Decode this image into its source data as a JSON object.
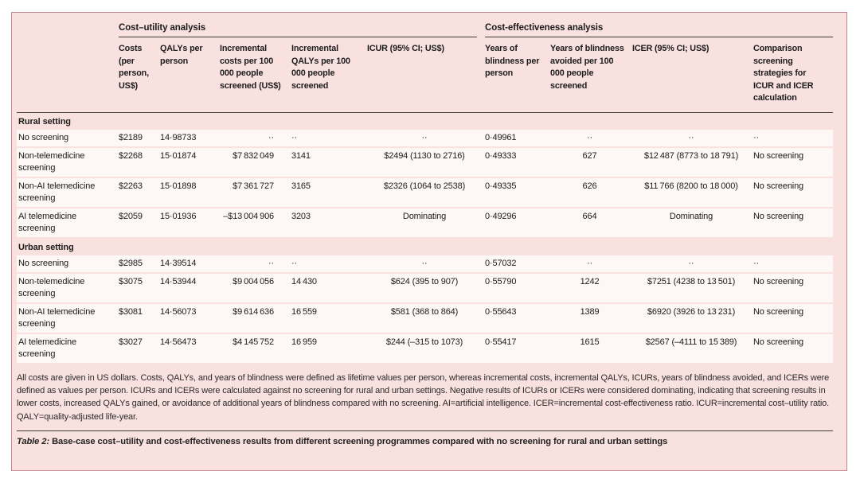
{
  "colors": {
    "pink_bg": "#f8e1de",
    "border_rose": "#c5868f",
    "row_white": "#fdf7f6",
    "rule_dark": "#3a3a3a",
    "text_dark": "#1c1c1c"
  },
  "table": {
    "spanners": [
      "Cost–utility analysis",
      "Cost-effectiveness analysis"
    ],
    "columns": [
      "",
      "Costs (per person, US$)",
      "QALYs per person",
      "Incremental costs per 100 000 people screened (US$)",
      "Incremental QALYs per 100 000 people screened",
      "ICUR (95% CI; US$)",
      "Years of blindness per person",
      "Years of blindness avoided per 100 000 people screened",
      "ICER (95% CI; US$)",
      "Comparison screening strategies for ICUR and ICER calculation"
    ],
    "sections": [
      {
        "title": "Rural setting",
        "rows": [
          [
            "No screening",
            "$2189",
            "14·98733",
            "··",
            "··",
            "··",
            "0·49961",
            "··",
            "··",
            "··"
          ],
          [
            "Non-telemedicine screening",
            "$2268",
            "15·01874",
            "$7 832 049",
            "3141",
            "$2494 (1130 to 2716)",
            "0·49333",
            "627",
            "$12 487 (8773 to 18 791)",
            "No screening"
          ],
          [
            "Non-AI telemedicine screening",
            "$2263",
            "15·01898",
            "$7 361 727",
            "3165",
            "$2326 (1064 to 2538)",
            "0·49335",
            "626",
            "$11 766 (8200 to 18 000)",
            "No screening"
          ],
          [
            "AI telemedicine screening",
            "$2059",
            "15·01936",
            "–$13 004 906",
            "3203",
            "Dominating",
            "0·49296",
            "664",
            "Dominating",
            "No screening"
          ]
        ]
      },
      {
        "title": "Urban setting",
        "rows": [
          [
            "No screening",
            "$2985",
            "14·39514",
            "··",
            "··",
            "··",
            "0·57032",
            "··",
            "··",
            "··"
          ],
          [
            "Non-telemedicine screening",
            "$3075",
            "14·53944",
            "$9 004 056",
            "14 430",
            "$624 (395 to 907)",
            "0·55790",
            "1242",
            "$7251 (4238 to 13 501)",
            "No screening"
          ],
          [
            "Non-AI telemedicine screening",
            "$3081",
            "14·56073",
            "$9 614 636",
            "16 559",
            "$581 (368 to 864)",
            "0·55643",
            "1389",
            "$6920 (3926 to 13 231)",
            "No screening"
          ],
          [
            "AI telemedicine screening",
            "$3027",
            "14·56473",
            "$4 145 752",
            "16 959",
            "$244 (–315 to 1073)",
            "0·55417",
            "1615",
            "$2567 (–4111 to 15 389)",
            "No screening"
          ]
        ]
      }
    ],
    "footnote": "All costs are given in US dollars. Costs, QALYs, and years of blindness were defined as lifetime values per person, whereas incremental costs, incremental QALYs, ICURs, years of blindness avoided, and ICERs were defined as values per person. ICURs and ICERs were calculated against no screening for rural and urban settings. Negative results of ICURs or ICERs were considered dominating, indicating that screening results in lower costs, increased QALYs gained, or avoidance of additional years of blindness compared with no screening. AI=artificial intelligence. ICER=incremental cost-effectiveness ratio. ICUR=incremental cost–utility ratio. QALY=quality-adjusted life-year.",
    "caption_label": "Table 2:",
    "caption_text": " Base-case cost–utility and cost-effectiveness results from different screening programmes compared with no screening for rural and urban settings"
  }
}
